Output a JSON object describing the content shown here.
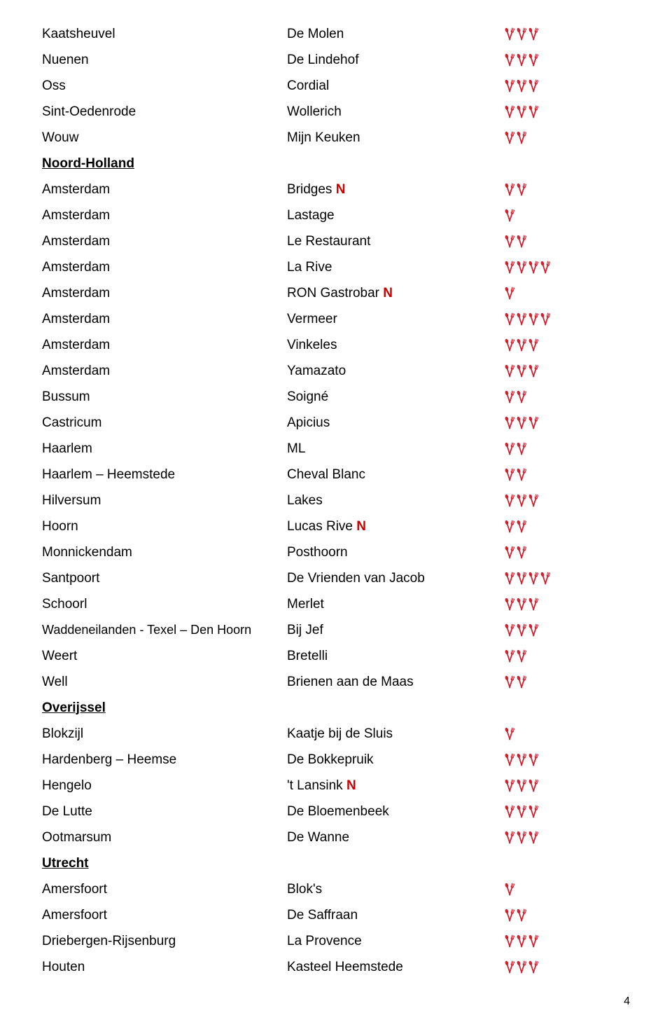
{
  "icon_color": "#d02030",
  "page_number": "4",
  "rows": [
    {
      "city": "Kaatsheuvel",
      "restaurant": "De Molen",
      "forks": 3
    },
    {
      "city": "Nuenen",
      "restaurant": "De Lindehof",
      "forks": 3
    },
    {
      "city": "Oss",
      "restaurant": "Cordial",
      "forks": 3
    },
    {
      "city": "Sint-Oedenrode",
      "restaurant": "Wollerich",
      "forks": 3
    },
    {
      "city": "Wouw",
      "restaurant": "Mijn Keuken",
      "forks": 2
    },
    {
      "city": "Noord-Holland",
      "region": true
    },
    {
      "city": "Amsterdam",
      "restaurant": "Bridges",
      "new": true,
      "forks": 2
    },
    {
      "city": "Amsterdam",
      "restaurant": "Lastage",
      "forks": 1
    },
    {
      "city": "Amsterdam",
      "restaurant": "Le Restaurant",
      "forks": 2
    },
    {
      "city": "Amsterdam",
      "restaurant": "La Rive",
      "forks": 4
    },
    {
      "city": "Amsterdam",
      "restaurant": "RON Gastrobar",
      "new": true,
      "forks": 1
    },
    {
      "city": "Amsterdam",
      "restaurant": "Vermeer",
      "forks": 4
    },
    {
      "city": "Amsterdam",
      "restaurant": "Vinkeles",
      "forks": 3
    },
    {
      "city": "Amsterdam",
      "restaurant": "Yamazato",
      "forks": 3
    },
    {
      "city": "Bussum",
      "restaurant": "Soigné",
      "forks": 2
    },
    {
      "city": "Castricum",
      "restaurant": "Apicius",
      "forks": 3
    },
    {
      "city": "Haarlem",
      "restaurant": "ML",
      "forks": 2
    },
    {
      "city": "Haarlem – Heemstede",
      "restaurant": "Cheval Blanc",
      "forks": 2
    },
    {
      "city": "Hilversum",
      "restaurant": "Lakes",
      "forks": 3
    },
    {
      "city": "Hoorn",
      "restaurant": "Lucas Rive",
      "new": true,
      "forks": 2
    },
    {
      "city": "Monnickendam",
      "restaurant": "Posthoorn",
      "forks": 2
    },
    {
      "city": "Santpoort",
      "restaurant": "De Vrienden van Jacob",
      "forks": 4
    },
    {
      "city": "Schoorl",
      "restaurant": "Merlet",
      "forks": 3
    },
    {
      "city": "Waddeneilanden - Texel – Den Hoorn",
      "restaurant": "Bij Jef",
      "forks": 3,
      "small": true
    },
    {
      "city": "Weert",
      "restaurant": "Bretelli",
      "forks": 2
    },
    {
      "city": "Well",
      "restaurant": "Brienen aan de Maas",
      "forks": 2
    },
    {
      "city": "Overijssel",
      "region": true
    },
    {
      "city": "Blokzijl",
      "restaurant": "Kaatje bij de Sluis",
      "forks": 1
    },
    {
      "city": "Hardenberg – Heemse",
      "restaurant": "De Bokkepruik",
      "forks": 3
    },
    {
      "city": "Hengelo",
      "restaurant": "'t Lansink",
      "new": true,
      "forks": 3
    },
    {
      "city": "De Lutte",
      "restaurant": "De Bloemenbeek",
      "forks": 3
    },
    {
      "city": "Ootmarsum",
      "restaurant": "De Wanne",
      "forks": 3
    },
    {
      "city": "Utrecht",
      "region": true
    },
    {
      "city": "Amersfoort",
      "restaurant": "Blok's",
      "forks": 1
    },
    {
      "city": "Amersfoort",
      "restaurant": "De Saffraan",
      "forks": 2
    },
    {
      "city": "Driebergen-Rijsenburg",
      "restaurant": "La Provence",
      "forks": 3
    },
    {
      "city": "Houten",
      "restaurant": "Kasteel Heemstede",
      "forks": 3
    }
  ]
}
